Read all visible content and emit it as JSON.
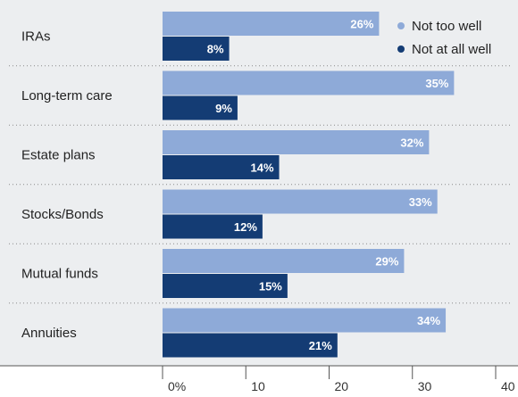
{
  "chart_data": {
    "type": "bar",
    "orientation": "horizontal",
    "categories": [
      "IRAs",
      "Long-term care",
      "Estate plans",
      "Stocks/Bonds",
      "Mutual funds",
      "Annuities"
    ],
    "series": [
      {
        "name": "Not too well",
        "values": [
          26,
          35,
          32,
          33,
          29,
          34
        ],
        "color": "#8eaad8"
      },
      {
        "name": "Not at all well",
        "values": [
          8,
          9,
          14,
          12,
          15,
          21
        ],
        "color": "#143c74"
      }
    ],
    "value_suffix": "%",
    "x_ticks": [
      {
        "value": 0,
        "label": "0%"
      },
      {
        "value": 10,
        "label": "10"
      },
      {
        "value": 20,
        "label": "20"
      },
      {
        "value": 30,
        "label": "30"
      },
      {
        "value": 40,
        "label": "40"
      }
    ],
    "xlim": [
      0,
      40
    ],
    "title": "",
    "xlabel": "",
    "ylabel": "",
    "grid": false,
    "legend_position": "top-right",
    "background_band_color": "#eceef0"
  }
}
